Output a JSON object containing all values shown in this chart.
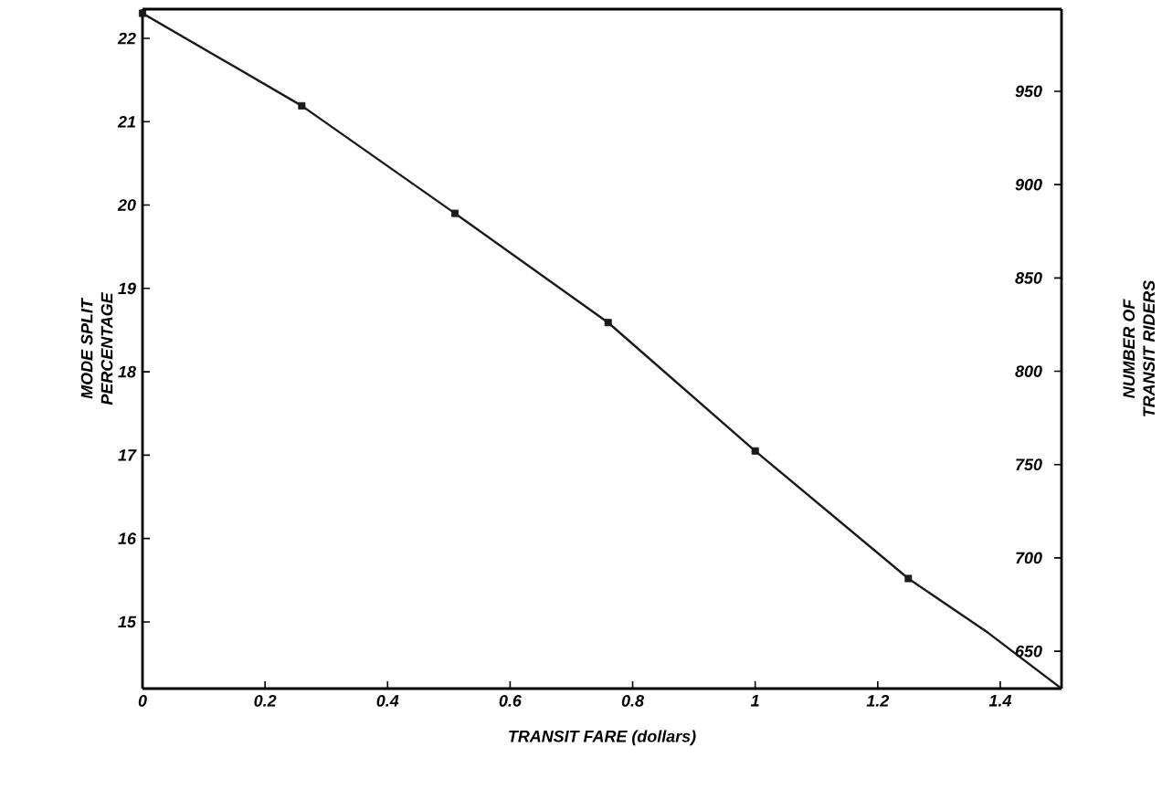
{
  "chart_data": {
    "type": "line",
    "xlabel": "TRANSIT FARE (dollars)",
    "ylabel": "MODE SPLIT\nPERCENTAGE",
    "y2label": "NUMBER OF\nTRANSIT RIDERS",
    "series": [
      {
        "color": "#1a1a1a",
        "marker": "none",
        "x": [
          0,
          0.26,
          0.51,
          0.76,
          1.0,
          1.25,
          1.38,
          1.5
        ],
        "values": [
          22.3,
          21.19,
          19.9,
          18.59,
          17.05,
          15.52,
          14.87,
          14.2
        ]
      },
      {
        "type": "scatter",
        "color": "#1a1a1a",
        "marker": "square",
        "x": [
          0,
          0.26,
          0.51,
          0.76,
          1.0,
          1.25
        ],
        "values": [
          22.3,
          21.19,
          19.9,
          18.59,
          17.05,
          15.52
        ]
      }
    ],
    "xlim": [
      0,
      1.5
    ],
    "xticks": [
      0,
      0.2,
      0.4,
      0.6,
      0.8,
      1,
      1.2,
      1.4
    ],
    "ylim": [
      14.2,
      22.35
    ],
    "yticks": [
      15,
      16,
      17,
      18,
      19,
      20,
      21,
      22
    ],
    "y2lim": [
      630,
      994
    ],
    "y2ticks": [
      650,
      700,
      750,
      800,
      850,
      900,
      950
    ],
    "grid": false
  }
}
